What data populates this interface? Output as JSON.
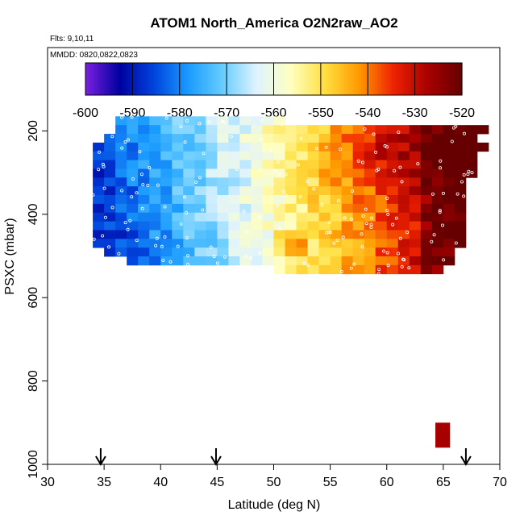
{
  "chart_data": {
    "type": "heatmap",
    "title": "ATOM1 North_America O2N2raw_AO2",
    "notes": [
      "Flts: 9,10,11",
      "MMDD: 0820,0822,0823"
    ],
    "xlabel": "Latitude (deg N)",
    "ylabel": "PSXC (mbar)",
    "xlim": [
      30,
      70
    ],
    "ylim": [
      1000,
      0
    ],
    "xticks": [
      "30",
      "35",
      "40",
      "45",
      "50",
      "55",
      "60",
      "65",
      "70"
    ],
    "yticks": [
      "200",
      "400",
      "600",
      "800",
      "1000"
    ],
    "colorbar": {
      "min": -600,
      "max": -520,
      "ticks": [
        "-600",
        "-590",
        "-580",
        "-570",
        "-560",
        "-550",
        "-540",
        "-530",
        "-520"
      ],
      "colors": [
        "#7a1fe0",
        "#0000a0",
        "#0044dd",
        "#1a9bff",
        "#66ccff",
        "#dff3ff",
        "#ffffc0",
        "#ffdf40",
        "#ff9900",
        "#ee2200",
        "#a80000",
        "#660000"
      ]
    },
    "arrows_latitude": [
      34.7,
      44.9,
      67.0
    ],
    "grid": false,
    "legend": "colorbar-top"
  }
}
